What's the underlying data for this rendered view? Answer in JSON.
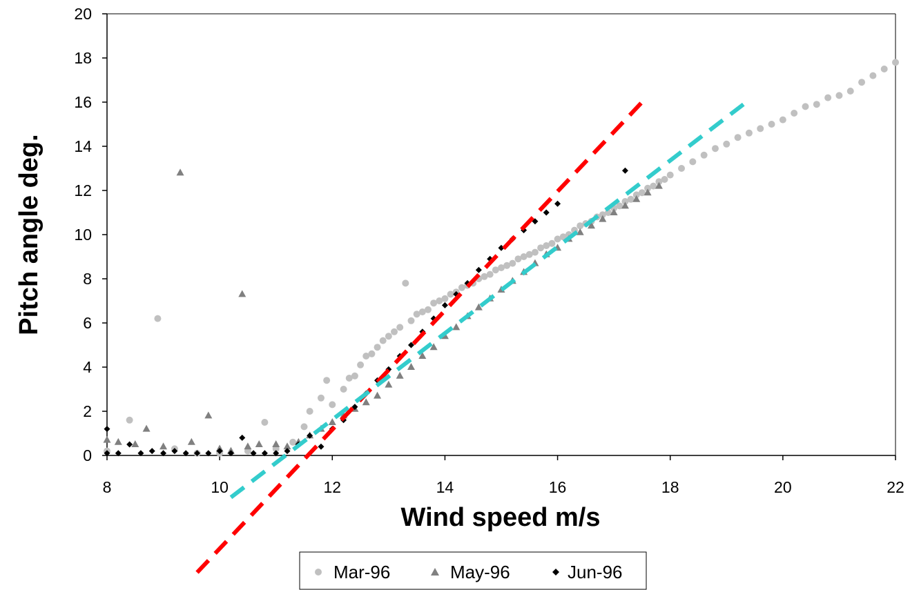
{
  "chart_data": {
    "type": "scatter",
    "title": "",
    "xlabel": "Wind speed m/s",
    "ylabel": "Pitch angle deg.",
    "xlim": [
      8,
      22
    ],
    "ylim": [
      0,
      20
    ],
    "x_ticks": [
      "8",
      "10",
      "12",
      "14",
      "16",
      "18",
      "20",
      "22"
    ],
    "y_ticks": [
      "0",
      "2",
      "4",
      "6",
      "8",
      "10",
      "12",
      "14",
      "16",
      "18",
      "20"
    ],
    "grid": false,
    "legend_position": "bottom-center",
    "series": [
      {
        "name": "Mar-96",
        "marker": "circle",
        "color": "#c0c0c0",
        "points": [
          [
            8.0,
            0.2
          ],
          [
            8.4,
            1.6
          ],
          [
            8.9,
            6.2
          ],
          [
            9.2,
            0.3
          ],
          [
            9.6,
            0.1
          ],
          [
            10.0,
            0.1
          ],
          [
            10.5,
            0.2
          ],
          [
            10.8,
            1.5
          ],
          [
            11.0,
            0.3
          ],
          [
            11.3,
            0.6
          ],
          [
            11.5,
            1.3
          ],
          [
            11.6,
            2.0
          ],
          [
            11.8,
            2.6
          ],
          [
            11.9,
            3.4
          ],
          [
            12.0,
            2.3
          ],
          [
            12.2,
            3.0
          ],
          [
            12.3,
            3.5
          ],
          [
            12.4,
            3.6
          ],
          [
            12.5,
            4.1
          ],
          [
            12.6,
            4.5
          ],
          [
            12.7,
            4.6
          ],
          [
            12.8,
            4.9
          ],
          [
            12.9,
            5.2
          ],
          [
            13.0,
            5.4
          ],
          [
            13.1,
            5.6
          ],
          [
            13.2,
            5.8
          ],
          [
            13.3,
            7.8
          ],
          [
            13.4,
            6.1
          ],
          [
            13.5,
            6.4
          ],
          [
            13.6,
            6.5
          ],
          [
            13.7,
            6.6
          ],
          [
            13.8,
            6.9
          ],
          [
            13.9,
            7.0
          ],
          [
            14.0,
            7.1
          ],
          [
            14.1,
            7.3
          ],
          [
            14.2,
            7.4
          ],
          [
            14.3,
            7.6
          ],
          [
            14.4,
            7.7
          ],
          [
            14.5,
            7.8
          ],
          [
            14.6,
            8.0
          ],
          [
            14.7,
            8.1
          ],
          [
            14.8,
            8.2
          ],
          [
            14.9,
            8.4
          ],
          [
            15.0,
            8.5
          ],
          [
            15.1,
            8.6
          ],
          [
            15.2,
            8.7
          ],
          [
            15.3,
            8.9
          ],
          [
            15.4,
            9.0
          ],
          [
            15.5,
            9.1
          ],
          [
            15.6,
            9.2
          ],
          [
            15.7,
            9.4
          ],
          [
            15.8,
            9.5
          ],
          [
            15.9,
            9.6
          ],
          [
            16.0,
            9.8
          ],
          [
            16.1,
            9.9
          ],
          [
            16.2,
            10.0
          ],
          [
            16.3,
            10.2
          ],
          [
            16.4,
            10.4
          ],
          [
            16.5,
            10.5
          ],
          [
            16.6,
            10.6
          ],
          [
            16.7,
            10.8
          ],
          [
            16.8,
            10.9
          ],
          [
            16.9,
            11.0
          ],
          [
            17.0,
            11.2
          ],
          [
            17.1,
            11.3
          ],
          [
            17.2,
            11.5
          ],
          [
            17.3,
            11.6
          ],
          [
            17.4,
            11.8
          ],
          [
            17.5,
            11.9
          ],
          [
            17.6,
            12.1
          ],
          [
            17.7,
            12.2
          ],
          [
            17.8,
            12.4
          ],
          [
            17.9,
            12.5
          ],
          [
            18.0,
            12.7
          ],
          [
            18.2,
            13.0
          ],
          [
            18.4,
            13.3
          ],
          [
            18.6,
            13.6
          ],
          [
            18.8,
            13.9
          ],
          [
            19.0,
            14.1
          ],
          [
            19.2,
            14.4
          ],
          [
            19.4,
            14.6
          ],
          [
            19.6,
            14.8
          ],
          [
            19.8,
            15.0
          ],
          [
            20.0,
            15.2
          ],
          [
            20.2,
            15.5
          ],
          [
            20.4,
            15.8
          ],
          [
            20.6,
            15.9
          ],
          [
            20.8,
            16.2
          ],
          [
            21.0,
            16.3
          ],
          [
            21.2,
            16.5
          ],
          [
            21.4,
            16.9
          ],
          [
            21.6,
            17.2
          ],
          [
            21.8,
            17.5
          ],
          [
            22.0,
            17.8
          ]
        ]
      },
      {
        "name": "May-96",
        "marker": "triangle",
        "color": "#808080",
        "points": [
          [
            8.0,
            0.7
          ],
          [
            8.2,
            0.6
          ],
          [
            8.5,
            0.5
          ],
          [
            8.7,
            1.2
          ],
          [
            9.0,
            0.4
          ],
          [
            9.3,
            12.8
          ],
          [
            9.5,
            0.6
          ],
          [
            9.8,
            1.8
          ],
          [
            10.0,
            0.3
          ],
          [
            10.2,
            0.2
          ],
          [
            10.4,
            7.3
          ],
          [
            10.5,
            0.4
          ],
          [
            10.7,
            0.5
          ],
          [
            11.0,
            0.5
          ],
          [
            11.2,
            0.4
          ],
          [
            11.4,
            0.6
          ],
          [
            11.6,
            0.9
          ],
          [
            11.8,
            1.2
          ],
          [
            12.0,
            1.5
          ],
          [
            12.2,
            1.8
          ],
          [
            12.4,
            2.1
          ],
          [
            12.6,
            2.4
          ],
          [
            12.8,
            2.7
          ],
          [
            13.0,
            3.2
          ],
          [
            13.2,
            3.6
          ],
          [
            13.4,
            4.0
          ],
          [
            13.6,
            4.5
          ],
          [
            13.8,
            4.9
          ],
          [
            14.0,
            5.4
          ],
          [
            14.2,
            5.8
          ],
          [
            14.4,
            6.3
          ],
          [
            14.6,
            6.7
          ],
          [
            14.8,
            7.1
          ],
          [
            15.0,
            7.5
          ],
          [
            15.2,
            7.9
          ],
          [
            15.4,
            8.3
          ],
          [
            15.6,
            8.7
          ],
          [
            15.8,
            9.1
          ],
          [
            16.0,
            9.4
          ],
          [
            16.2,
            9.8
          ],
          [
            16.4,
            10.1
          ],
          [
            16.6,
            10.4
          ],
          [
            16.8,
            10.7
          ],
          [
            17.0,
            11.0
          ],
          [
            17.2,
            11.3
          ],
          [
            17.4,
            11.6
          ],
          [
            17.6,
            11.9
          ],
          [
            17.8,
            12.2
          ]
        ]
      },
      {
        "name": "Jun-96",
        "marker": "diamond",
        "color": "#000000",
        "points": [
          [
            8.0,
            1.2
          ],
          [
            8.0,
            0.1
          ],
          [
            8.2,
            0.1
          ],
          [
            8.4,
            0.5
          ],
          [
            8.6,
            0.1
          ],
          [
            8.8,
            0.2
          ],
          [
            9.0,
            0.1
          ],
          [
            9.2,
            0.2
          ],
          [
            9.4,
            0.1
          ],
          [
            9.6,
            0.1
          ],
          [
            9.8,
            0.1
          ],
          [
            10.0,
            0.2
          ],
          [
            10.2,
            0.1
          ],
          [
            10.4,
            0.8
          ],
          [
            10.6,
            0.1
          ],
          [
            10.8,
            0.1
          ],
          [
            11.0,
            0.1
          ],
          [
            11.2,
            0.2
          ],
          [
            11.4,
            0.5
          ],
          [
            11.6,
            0.9
          ],
          [
            11.8,
            0.4
          ],
          [
            12.0,
            1.2
          ],
          [
            12.2,
            1.6
          ],
          [
            12.4,
            2.2
          ],
          [
            12.6,
            2.8
          ],
          [
            12.8,
            3.4
          ],
          [
            13.0,
            3.9
          ],
          [
            13.2,
            4.5
          ],
          [
            13.4,
            5.0
          ],
          [
            13.6,
            5.6
          ],
          [
            13.8,
            6.2
          ],
          [
            14.0,
            6.8
          ],
          [
            14.2,
            7.3
          ],
          [
            14.4,
            7.8
          ],
          [
            14.6,
            8.4
          ],
          [
            14.8,
            8.9
          ],
          [
            15.0,
            9.4
          ],
          [
            15.2,
            9.8
          ],
          [
            15.4,
            10.2
          ],
          [
            15.6,
            10.6
          ],
          [
            15.8,
            11.0
          ],
          [
            16.0,
            11.4
          ],
          [
            17.2,
            12.9
          ]
        ]
      }
    ],
    "trend_lines": [
      {
        "color": "#ff0000",
        "dash": "dashed",
        "from": [
          9.6,
          -5.3
        ],
        "to": [
          17.5,
          16.0
        ]
      },
      {
        "color": "#33cccc",
        "dash": "dashed",
        "from": [
          10.2,
          -1.9
        ],
        "to": [
          19.3,
          15.9
        ]
      }
    ]
  }
}
